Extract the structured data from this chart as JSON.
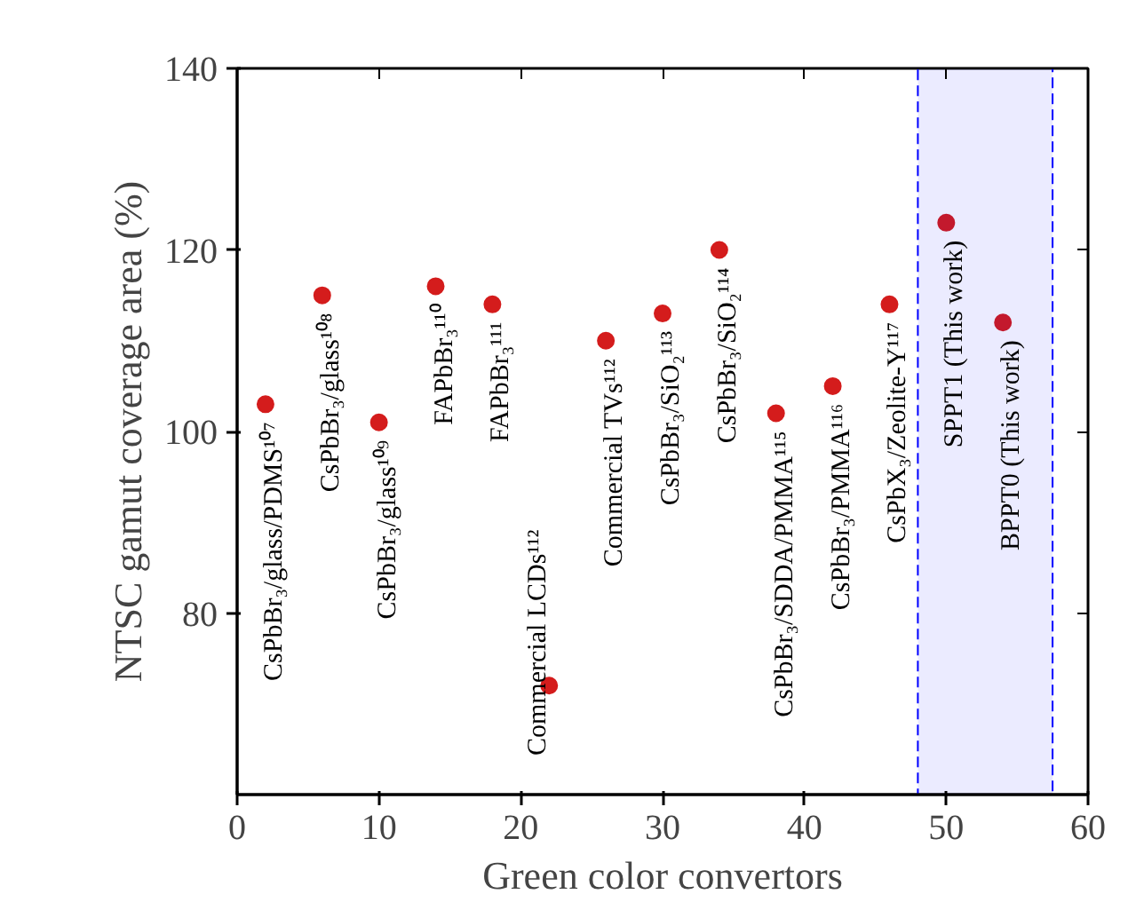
{
  "chart_data": {
    "type": "scatter",
    "xlabel": "Green color convertors",
    "ylabel": "NTSC gamut coverage area (%)",
    "x": [
      2,
      6,
      10,
      14,
      18,
      22,
      26,
      30,
      34,
      38,
      42,
      46,
      50,
      54
    ],
    "values": [
      103,
      115,
      101,
      116,
      114,
      72,
      110,
      113,
      120,
      102,
      105,
      114,
      123,
      112
    ],
    "color": "#d41c1c",
    "marker": "circle",
    "xlim": [
      0,
      60
    ],
    "xticks": [
      0,
      10,
      20,
      30,
      40,
      50,
      60
    ],
    "ylim": [
      60,
      140
    ],
    "yticks": [
      80,
      100,
      120,
      140
    ],
    "grid": false,
    "legend": false,
    "bands": [
      {
        "axis": "x",
        "from": 48,
        "to": 57.5,
        "color": "#0000ff"
      }
    ],
    "annotations": [
      {
        "text": "CsPbBr₃/glass/PDMS¹⁰⁷",
        "x": 2,
        "y": 103
      },
      {
        "text": "CsPbBr₃/glass¹⁰⁸",
        "x": 6,
        "y": 115
      },
      {
        "text": "CsPbBr₃/glass¹⁰⁹",
        "x": 10,
        "y": 101
      },
      {
        "text": "FAPbBr₃¹¹⁰",
        "x": 14,
        "y": 116
      },
      {
        "text": "FAPbBr₃¹¹¹",
        "x": 18,
        "y": 114
      },
      {
        "text": "Commercial LCDs¹¹²",
        "x": 22,
        "y": 72
      },
      {
        "text": "Commercial TVs¹¹²",
        "x": 26,
        "y": 110
      },
      {
        "text": "CsPbBr₃/SiO₂¹¹³",
        "x": 30,
        "y": 113
      },
      {
        "text": "CsPbBr₃/SiO₂¹¹⁴",
        "x": 34,
        "y": 120
      },
      {
        "text": "CsPbBr₃/SDDA/PMMA¹¹⁵",
        "x": 38,
        "y": 102
      },
      {
        "text": "CsPbBr₃/PMMA¹¹⁶",
        "x": 42,
        "y": 105
      },
      {
        "text": "CsPbX₃/Zeolite-Y¹¹⁷",
        "x": 46,
        "y": 114
      },
      {
        "text": "SPPT1 (This work)",
        "x": 50,
        "y": 123
      },
      {
        "text": "BPPT0 (This work)",
        "x": 54,
        "y": 112
      }
    ]
  }
}
